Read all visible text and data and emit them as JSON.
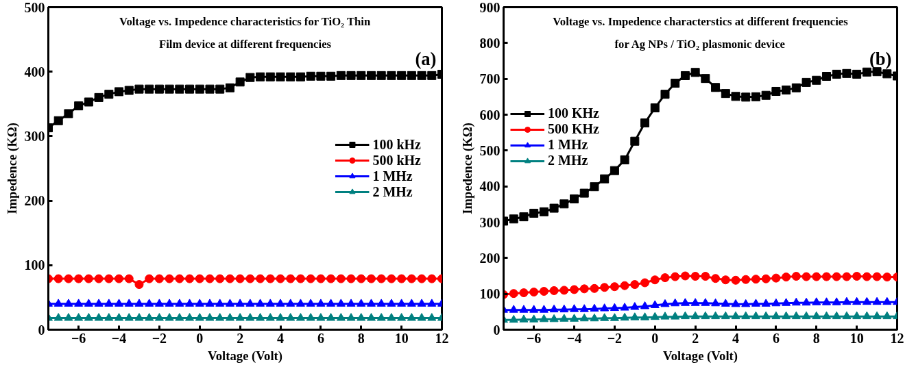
{
  "chart_data": [
    {
      "type": "line",
      "title": "Voltage vs. Impedence characteristics for TiO₂ Thin\nFilm device at different frequencies",
      "xlabel": "Voltage (Volt)",
      "ylabel": "Impedence (KΩ)",
      "annotations": [
        "(a)"
      ],
      "x": [
        -7.5,
        -7,
        -6.5,
        -6,
        -5.5,
        -5,
        -4.5,
        -4,
        -3.5,
        -3,
        -2.5,
        -2,
        -1.5,
        -1,
        -0.5,
        0,
        0.5,
        1,
        1.5,
        2,
        2.5,
        3,
        3.5,
        4,
        4.5,
        5,
        5.5,
        6,
        6.5,
        7,
        7.5,
        8,
        8.5,
        9,
        9.5,
        10,
        10.5,
        11,
        11.5,
        12
      ],
      "series": [
        {
          "name": "100 kHz",
          "color": "#000000",
          "marker": "square",
          "values": [
            313,
            324,
            335,
            347,
            353,
            360,
            365,
            369,
            371,
            373,
            373,
            373,
            373,
            373,
            373,
            373,
            373,
            373,
            375,
            384,
            391,
            392,
            392,
            392,
            392,
            392,
            393,
            393,
            393,
            394,
            394,
            394,
            394,
            394,
            394,
            394,
            394,
            394,
            394,
            396
          ]
        },
        {
          "name": "500 kHz",
          "color": "#ff0000",
          "marker": "circle",
          "values": [
            79,
            79,
            79,
            79,
            79,
            79,
            79,
            79,
            79,
            70,
            79,
            79,
            79,
            79,
            79,
            79,
            79,
            79,
            79,
            79,
            79,
            79,
            79,
            79,
            79,
            79,
            79,
            79,
            79,
            79,
            79,
            79,
            79,
            79,
            79,
            79,
            79,
            79,
            79,
            79
          ]
        },
        {
          "name": "1 MHz",
          "color": "#0000ff",
          "marker": "triangle",
          "values": [
            40,
            40,
            40,
            40,
            40,
            40,
            40,
            40,
            40,
            40,
            40,
            40,
            40,
            40,
            40,
            40,
            40,
            40,
            40,
            40,
            40,
            40,
            40,
            40,
            40,
            40,
            40,
            40,
            40,
            40,
            40,
            40,
            40,
            40,
            40,
            40,
            40,
            40,
            40,
            40
          ]
        },
        {
          "name": "2 MHz",
          "color": "#008080",
          "marker": "triangle",
          "values": [
            18,
            18,
            18,
            18,
            18,
            18,
            18,
            18,
            18,
            18,
            18,
            18,
            18,
            18,
            18,
            18,
            18,
            18,
            18,
            18,
            18,
            18,
            18,
            18,
            18,
            18,
            18,
            18,
            18,
            18,
            18,
            18,
            18,
            18,
            18,
            18,
            18,
            18,
            18,
            18
          ]
        }
      ],
      "xlim": [
        -7.5,
        12
      ],
      "xticks": [
        -6,
        -4,
        -2,
        0,
        2,
        4,
        6,
        8,
        10,
        12
      ],
      "ylim": [
        0,
        500
      ],
      "yticks": [
        0,
        100,
        200,
        300,
        400,
        500
      ],
      "grid": false,
      "legend": "right"
    },
    {
      "type": "line",
      "title": "Voltage vs. Impedence characterstics at different frequencies\nfor Ag NPs / TiO₂ plasmonic device",
      "xlabel": "Voltage (Volt)",
      "ylabel": "Impedence (KΩ)",
      "annotations": [
        "(b)"
      ],
      "x": [
        -7.5,
        -7,
        -6.5,
        -6,
        -5.5,
        -5,
        -4.5,
        -4,
        -3.5,
        -3,
        -2.5,
        -2,
        -1.5,
        -1,
        -0.5,
        0,
        0.5,
        1,
        1.5,
        2,
        2.5,
        3,
        3.5,
        4,
        4.5,
        5,
        5.5,
        6,
        6.5,
        7,
        7.5,
        8,
        8.5,
        9,
        9.5,
        10,
        10.5,
        11,
        11.5,
        12
      ],
      "series": [
        {
          "name": "100 KHz",
          "color": "#000000",
          "marker": "square",
          "values": [
            303,
            309,
            315,
            325,
            329,
            339,
            351,
            365,
            381,
            399,
            421,
            444,
            474,
            526,
            577,
            619,
            657,
            688,
            709,
            718,
            701,
            676,
            659,
            651,
            649,
            650,
            654,
            665,
            669,
            675,
            690,
            696,
            707,
            713,
            715,
            713,
            719,
            720,
            714,
            708
          ]
        },
        {
          "name": "500 KHz",
          "color": "#ff0000",
          "marker": "circle",
          "values": [
            98,
            101,
            103,
            105,
            107,
            109,
            110,
            112,
            114,
            115,
            118,
            120,
            123,
            126,
            131,
            139,
            145,
            148,
            150,
            149,
            149,
            143,
            139,
            138,
            140,
            141,
            142,
            144,
            147,
            149,
            148,
            148,
            148,
            148,
            148,
            149,
            148,
            148,
            147,
            147
          ]
        },
        {
          "name": "1 MHz",
          "color": "#0000ff",
          "marker": "triangle",
          "values": [
            55,
            55,
            55,
            55,
            55,
            56,
            56,
            57,
            57,
            58,
            59,
            60,
            61,
            63,
            65,
            68,
            71,
            73,
            74,
            74,
            74,
            73,
            72,
            71,
            71,
            72,
            72,
            73,
            74,
            75,
            75,
            76,
            76,
            76,
            77,
            77,
            77,
            77,
            77,
            77
          ]
        },
        {
          "name": "2 MHz",
          "color": "#008080",
          "marker": "triangle",
          "values": [
            27,
            27,
            28,
            28,
            29,
            29,
            30,
            30,
            31,
            31,
            32,
            32,
            33,
            34,
            34,
            35,
            36,
            36,
            37,
            37,
            37,
            37,
            37,
            37,
            37,
            37,
            37,
            37,
            37,
            37,
            37,
            37,
            37,
            37,
            37,
            37,
            37,
            37,
            37,
            37
          ]
        }
      ],
      "xlim": [
        -7.5,
        12
      ],
      "xticks": [
        -6,
        -4,
        -2,
        0,
        2,
        4,
        6,
        8,
        10,
        12
      ],
      "ylim": [
        0,
        900
      ],
      "yticks": [
        0,
        100,
        200,
        300,
        400,
        500,
        600,
        700,
        800,
        900
      ],
      "grid": false,
      "legend": "top left"
    }
  ]
}
